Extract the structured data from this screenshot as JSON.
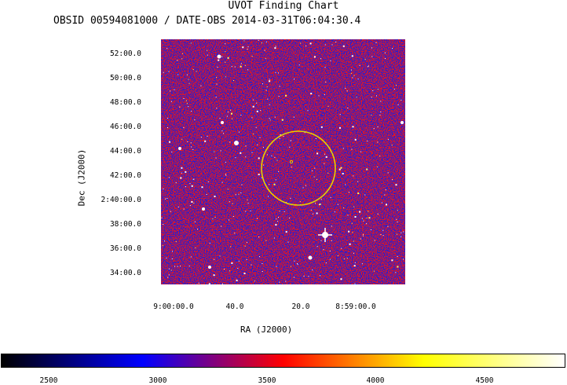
{
  "chart_data": {
    "type": "heatmap",
    "title": "UVOT Finding Chart",
    "subtitle": "OBSID 00594081000 / DATE-OBS 2014-03-31T06:04:30.4",
    "xlabel": "RA (J2000)",
    "ylabel": "Dec (J2000)",
    "x_tick_labels": [
      "9:00:00.0",
      "40.0",
      "20.0",
      "8:59:00.0"
    ],
    "y_tick_labels": [
      "52:00.0",
      "50:00.0",
      "48:00.0",
      "46:00.0",
      "44:00.0",
      "42:00.0",
      "2:40:00.0",
      "38:00.0",
      "36:00.0",
      "34:00.0"
    ],
    "colorbar": {
      "tick_labels": [
        "2500",
        "3000",
        "3500",
        "4000",
        "4500"
      ],
      "tick_values": [
        2500,
        3000,
        3500,
        4000,
        4500
      ],
      "range": [
        2280,
        4880
      ],
      "colormap": [
        "#000000",
        "#0000ff",
        "#ff0000",
        "#ffff00",
        "#ffffff"
      ]
    },
    "colors": {
      "background_red": "#e8141e",
      "background_blue": "#1f1fd8",
      "circle": "#e8d000",
      "star": "#ffffff"
    }
  }
}
